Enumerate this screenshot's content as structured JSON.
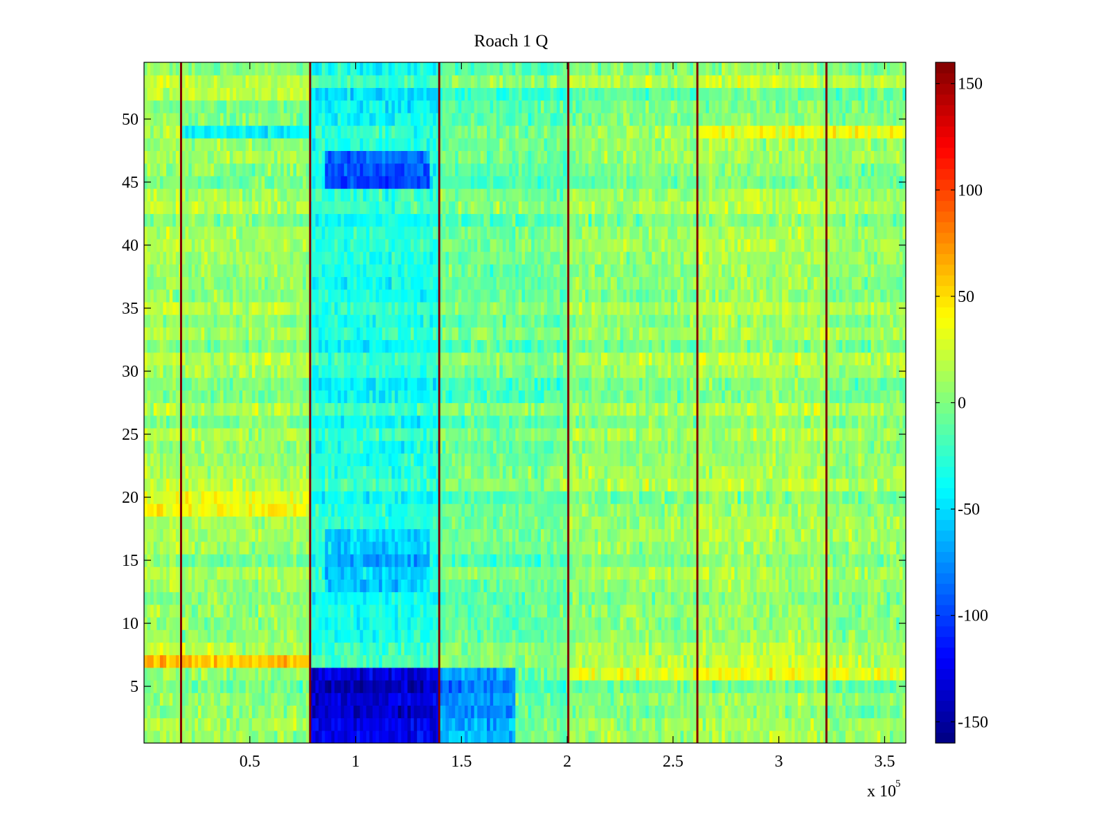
{
  "chart_data": {
    "type": "heatmap",
    "title": "Roach 1 Q",
    "xlabel": "",
    "ylabel": "",
    "x_multiplier_label": "x 10",
    "x_multiplier_exponent": "5",
    "xlim": [
      0,
      360000
    ],
    "ylim": [
      0.5,
      54.5
    ],
    "x_ticks": [
      {
        "value": 50000,
        "label": "0.5"
      },
      {
        "value": 100000,
        "label": "1"
      },
      {
        "value": 150000,
        "label": "1.5"
      },
      {
        "value": 200000,
        "label": "2"
      },
      {
        "value": 250000,
        "label": "2.5"
      },
      {
        "value": 300000,
        "label": "3"
      },
      {
        "value": 350000,
        "label": "3.5"
      }
    ],
    "y_ticks": [
      {
        "value": 5,
        "label": "5"
      },
      {
        "value": 10,
        "label": "10"
      },
      {
        "value": 15,
        "label": "15"
      },
      {
        "value": 20,
        "label": "20"
      },
      {
        "value": 25,
        "label": "25"
      },
      {
        "value": 30,
        "label": "30"
      },
      {
        "value": 35,
        "label": "35"
      },
      {
        "value": 40,
        "label": "40"
      },
      {
        "value": 45,
        "label": "45"
      },
      {
        "value": 50,
        "label": "50"
      }
    ],
    "rows": 54,
    "colormap": "jet",
    "clim": [
      -160,
      160
    ],
    "colorbar": {
      "ticks": [
        {
          "value": 150,
          "label": "150"
        },
        {
          "value": 100,
          "label": "100"
        },
        {
          "value": 50,
          "label": "50"
        },
        {
          "value": 0,
          "label": "0"
        },
        {
          "value": -50,
          "label": "-50"
        },
        {
          "value": -100,
          "label": "-100"
        },
        {
          "value": -150,
          "label": "-150"
        }
      ]
    },
    "segment_boundaries": [
      17500,
      78500,
      139500,
      200500,
      261500,
      322500
    ],
    "segment_baselines": [
      {
        "x_start": 0,
        "x_end": 17500,
        "mean": 10
      },
      {
        "x_start": 17500,
        "x_end": 78500,
        "mean": 6
      },
      {
        "x_start": 78500,
        "x_end": 139500,
        "mean": -32
      },
      {
        "x_start": 139500,
        "x_end": 200500,
        "mean": -8
      },
      {
        "x_start": 200500,
        "x_end": 261500,
        "mean": 4
      },
      {
        "x_start": 261500,
        "x_end": 322500,
        "mean": 10
      },
      {
        "x_start": 322500,
        "x_end": 360000,
        "mean": 4
      }
    ],
    "notable_regions": [
      {
        "x_range": [
          78500,
          139500
        ],
        "y_range": [
          0.5,
          6.5
        ],
        "value": -130,
        "description": "strong negative (dark blue) block"
      },
      {
        "x_range": [
          85000,
          135000
        ],
        "y_range": [
          44.5,
          47.5
        ],
        "value": -90,
        "description": "negative (blue) band"
      },
      {
        "x_range": [
          85000,
          135000
        ],
        "y_range": [
          12.5,
          17.5
        ],
        "value": -60,
        "description": "negative (blue) patch"
      },
      {
        "x_range": [
          139500,
          175000
        ],
        "y_range": [
          0.5,
          6.5
        ],
        "value": -70,
        "description": "fading negative region"
      },
      {
        "x_range": [
          0,
          78500
        ],
        "y_range": [
          6.5,
          7.5
        ],
        "value": 45,
        "description": "positive (yellow/orange) row"
      },
      {
        "x_range": [
          0,
          78500
        ],
        "y_range": [
          18.5,
          20.5
        ],
        "value": 40,
        "description": "positive (yellow) rows"
      },
      {
        "x_range": [
          0,
          78500
        ],
        "y_range": [
          51.5,
          52.5
        ],
        "value": 35,
        "description": "positive (yellow) row"
      },
      {
        "x_range": [
          200500,
          360000
        ],
        "y_range": [
          5.5,
          6.5
        ],
        "value": 35,
        "description": "positive (yellow) row"
      },
      {
        "x_range": [
          17500,
          78500
        ],
        "y_range": [
          48.5,
          49.5
        ],
        "value": -50,
        "description": "negative (cyan/blue) row"
      },
      {
        "x_range": [
          261500,
          360000
        ],
        "y_range": [
          48.5,
          49.5
        ],
        "value": 30,
        "description": "positive (yellow) row"
      }
    ]
  }
}
